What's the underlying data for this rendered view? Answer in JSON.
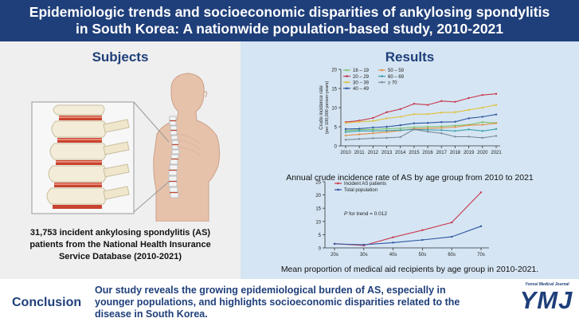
{
  "header": {
    "title_line1": "Epidemiologic trends and socioeconomic disparities of ankylosing spondylitis",
    "title_line2": "in South Korea: A nationwide population-based study, 2010-2021"
  },
  "subjects": {
    "title": "Subjects",
    "desc_line1": "31,753 incident ankylosing spondylitis (AS)",
    "desc_line2": "patients from the National Health Insurance",
    "desc_line3": "Service Database (2010-2021)"
  },
  "results": {
    "title": "Results",
    "caption1": "Annual crude incidence rate of AS by age group from 2010 to 2021",
    "caption2": "Mean proportion of medical aid recipients by age group in 2010-2021."
  },
  "conclusion": {
    "label": "Conclusion",
    "line1": "Our study reveals the growing epidemiological burden of AS, especially in",
    "line2": "younger populations, and highlights socioeconomic disparities related to the",
    "line3": "disease in South Korea."
  },
  "journal": {
    "name": "Yonsei Medical Journal",
    "logo": "YMJ"
  },
  "colors": {
    "header_bg": "#1f3f7a",
    "left_bg": "#efefef",
    "right_bg": "#d5e5f3",
    "accent": "#1f3f7a"
  },
  "chart_data": [
    {
      "type": "line",
      "ylabel": "Crude incidence rate (per 100,000 person-years)",
      "ylabel_line1": "Crude incidence rate",
      "ylabel_line2": "(per 100,000 person-years)",
      "xlabel": "",
      "x": [
        "2010",
        "2011",
        "2012",
        "2013",
        "2014",
        "2015",
        "2016",
        "2017",
        "2018",
        "2019",
        "2020",
        "2021"
      ],
      "ylim": [
        0,
        20
      ],
      "yticks": [
        "0",
        "5",
        "10",
        "15",
        "20"
      ],
      "grid": false,
      "legend_position": "top-left",
      "series": [
        {
          "name": "16 – 19",
          "color": "#7ec36d",
          "values": [
            4.0,
            4.2,
            4.3,
            4.5,
            4.6,
            4.9,
            5.0,
            5.1,
            5.3,
            5.5,
            6.2,
            6.0
          ]
        },
        {
          "name": "20 – 29",
          "color": "#c8384e",
          "values": [
            6.2,
            6.6,
            7.3,
            8.8,
            9.6,
            11.0,
            10.7,
            11.7,
            11.5,
            12.5,
            13.3,
            13.6
          ]
        },
        {
          "name": "30 – 39",
          "color": "#dfc03c",
          "values": [
            6.0,
            6.3,
            6.5,
            7.2,
            7.6,
            8.3,
            8.3,
            8.7,
            8.8,
            9.4,
            10.0,
            10.7
          ]
        },
        {
          "name": "40 – 49",
          "color": "#2c55a0",
          "values": [
            4.4,
            4.5,
            4.8,
            5.0,
            5.4,
            5.9,
            6.0,
            6.2,
            6.3,
            7.2,
            7.6,
            8.2
          ]
        },
        {
          "name": "50 – 59",
          "color": "#e39045",
          "values": [
            2.7,
            3.0,
            3.3,
            3.6,
            4.0,
            4.5,
            4.6,
            4.7,
            4.9,
            5.4,
            5.5,
            5.9
          ]
        },
        {
          "name": "60 – 69",
          "color": "#3c9fab",
          "values": [
            3.6,
            3.9,
            3.9,
            4.0,
            4.1,
            4.3,
            4.2,
            4.1,
            3.9,
            4.3,
            3.9,
            4.4
          ]
        },
        {
          "name": "≥ 70",
          "color": "#7a8a95",
          "values": [
            1.6,
            1.8,
            2.0,
            2.1,
            2.3,
            4.3,
            3.7,
            3.3,
            2.4,
            2.4,
            2.1,
            2.6
          ]
        }
      ]
    },
    {
      "type": "line",
      "x": [
        "20s",
        "30s",
        "40s",
        "50s",
        "60s",
        "70s"
      ],
      "ylim": [
        0,
        25
      ],
      "yticks": [
        "0",
        "5",
        "10",
        "15",
        "20",
        "25"
      ],
      "xlabel": "",
      "ylabel": "",
      "grid": false,
      "legend_position": "top-left",
      "annotation": "P for trend = 0.012",
      "series": [
        {
          "name": "Incident AS patients",
          "color": "#c8384e",
          "values": [
            1.6,
            0.9,
            4.0,
            6.7,
            9.6,
            21.0
          ]
        },
        {
          "name": "Total population",
          "color": "#2c55a0",
          "values": [
            1.5,
            1.2,
            2.0,
            3.0,
            4.2,
            8.2
          ]
        }
      ]
    }
  ]
}
